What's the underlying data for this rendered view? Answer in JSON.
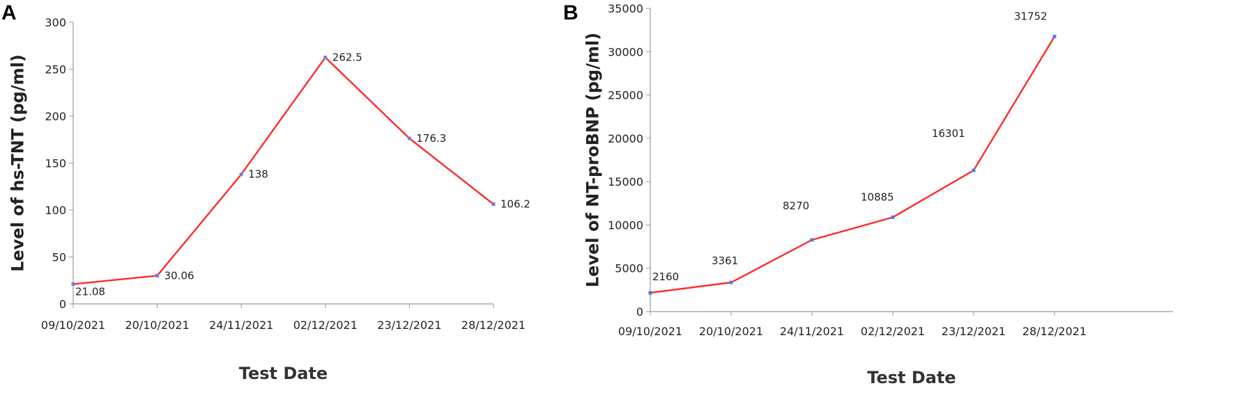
{
  "panels": [
    {
      "letter": "A",
      "chart_data": {
        "type": "line",
        "categories": [
          "09/10/2021",
          "20/10/2021",
          "24/11/2021",
          "02/12/2021",
          "23/12/2021",
          "28/12/2021"
        ],
        "series": [
          {
            "values": [
              21.08,
              30.06,
              138,
              262.5,
              176.3,
              106.2
            ],
            "color": "#ff2a2a"
          }
        ],
        "data_labels": [
          "21.08",
          "30.06",
          "138",
          "262.5",
          "176.3",
          "106.2"
        ],
        "yticks": [
          "0",
          "50",
          "100",
          "150",
          "200",
          "250",
          "300"
        ],
        "ylim": [
          0,
          300
        ],
        "xlabel": "Test Date",
        "ylabel": "Level of hs-TNT (pg/ml)",
        "grid": false,
        "marker_color": "#7b7bd6"
      }
    },
    {
      "letter": "B",
      "chart_data": {
        "type": "line",
        "categories": [
          "09/10/2021",
          "20/10/2021",
          "24/11/2021",
          "02/12/2021",
          "23/12/2021",
          "28/12/2021"
        ],
        "series": [
          {
            "values": [
              2160,
              3361,
              8270,
              10885,
              16301,
              31752
            ],
            "color": "#ff2a2a"
          }
        ],
        "data_labels": [
          "2160",
          "3361",
          "8270",
          "10885",
          "16301",
          "31752"
        ],
        "yticks": [
          "0",
          "5000",
          "10000",
          "15000",
          "20000",
          "25000",
          "30000",
          "35000"
        ],
        "ylim": [
          0,
          35000
        ],
        "xlabel": "Test Date",
        "ylabel": "Level of NT-proBNP (pg/ml)",
        "grid": false,
        "marker_color": "#4a7de8"
      }
    }
  ]
}
